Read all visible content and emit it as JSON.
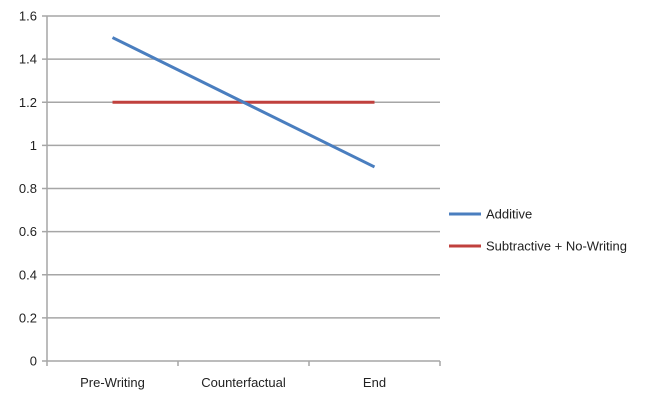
{
  "chart_data": {
    "type": "line",
    "title": "",
    "xlabel": "",
    "ylabel": "",
    "categories": [
      "Pre-Writing",
      "Counterfactual",
      "End"
    ],
    "ylim": [
      0,
      1.6
    ],
    "yticks": [
      "0",
      "0.2",
      "0.4",
      "0.6",
      "0.8",
      "1",
      "1.2",
      "1.4",
      "1.6"
    ],
    "grid": true,
    "legend_position": "right",
    "series": [
      {
        "name": "Additive",
        "values": [
          1.5,
          1.2,
          0.9
        ],
        "color": "#4a7ebf"
      },
      {
        "name": "Subtractive + No-Writing",
        "values": [
          1.2,
          1.2,
          1.2
        ],
        "color": "#c0403d"
      }
    ]
  }
}
